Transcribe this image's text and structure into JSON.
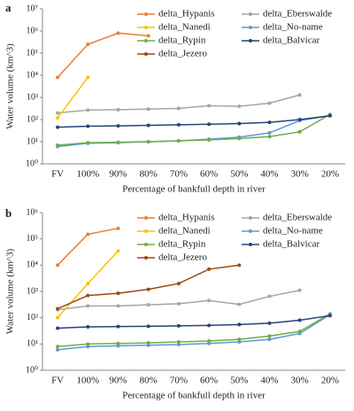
{
  "chart_data": [
    {
      "type": "line",
      "panel": "a",
      "log_y": true,
      "grid": false,
      "y_label": "Water volume (km^3)",
      "x_label": "Percentage of bankfull depth in river",
      "categories": [
        "FV",
        "100%",
        "90%",
        "80%",
        "70%",
        "60%",
        "50%",
        "40%",
        "30%",
        "20%"
      ],
      "ylim": [
        1,
        10000000
      ],
      "yticks": [
        {
          "value": 1,
          "label": "10⁰"
        },
        {
          "value": 10,
          "label": "10¹"
        },
        {
          "value": 100,
          "label": "10²"
        },
        {
          "value": 1000,
          "label": "10³"
        },
        {
          "value": 10000,
          "label": "10⁴"
        },
        {
          "value": 100000,
          "label": "10⁵"
        },
        {
          "value": 1000000,
          "label": "10⁶"
        },
        {
          "value": 10000000,
          "label": "10⁷"
        }
      ],
      "series": [
        {
          "name": "delta_Hypanis",
          "color": "#ed7d31",
          "values": [
            8000,
            250000,
            800000,
            600000,
            null,
            null,
            null,
            null,
            null,
            null
          ]
        },
        {
          "name": "delta_Eberswalde",
          "color": "#a5a5a5",
          "values": [
            200,
            270,
            280,
            300,
            320,
            420,
            400,
            550,
            1300,
            null
          ]
        },
        {
          "name": "delta_Nanedi",
          "color": "#ffc000",
          "values": [
            120,
            8000,
            null,
            null,
            null,
            null,
            null,
            null,
            null,
            null
          ]
        },
        {
          "name": "delta_No-name",
          "color": "#5b9bd5",
          "values": [
            6,
            8.5,
            9,
            10,
            11,
            13,
            16,
            25,
            90,
            150
          ]
        },
        {
          "name": "delta_Rypin",
          "color": "#70ad47",
          "values": [
            7,
            9,
            9.5,
            10,
            11,
            12,
            14,
            17,
            28,
            170
          ]
        },
        {
          "name": "delta_Balvicar",
          "color": "#264478",
          "values": [
            45,
            50,
            52,
            55,
            58,
            62,
            66,
            75,
            100,
            150
          ]
        },
        {
          "name": "delta_Jezero",
          "color": "#9e480e",
          "values": [
            null,
            null,
            null,
            null,
            null,
            null,
            null,
            null,
            null,
            null
          ]
        }
      ]
    },
    {
      "type": "line",
      "panel": "b",
      "log_y": true,
      "grid": false,
      "y_label": "Water volume (km^3)",
      "x_label": "Percentage of bankfull depth in river",
      "categories": [
        "FV",
        "100%",
        "90%",
        "80%",
        "70%",
        "60%",
        "50%",
        "40%",
        "30%",
        "20%"
      ],
      "ylim": [
        1,
        1000000
      ],
      "yticks": [
        {
          "value": 1,
          "label": "10⁰"
        },
        {
          "value": 10,
          "label": "10¹"
        },
        {
          "value": 100,
          "label": "10²"
        },
        {
          "value": 1000,
          "label": "10³"
        },
        {
          "value": 10000,
          "label": "10⁴"
        },
        {
          "value": 100000,
          "label": "10⁵"
        },
        {
          "value": 1000000,
          "label": "10⁶"
        }
      ],
      "series": [
        {
          "name": "delta_Hypanis",
          "color": "#ed7d31",
          "values": [
            10000,
            150000,
            250000,
            null,
            null,
            null,
            null,
            null,
            null,
            null
          ]
        },
        {
          "name": "delta_Eberswalde",
          "color": "#a5a5a5",
          "values": [
            200,
            280,
            280,
            310,
            340,
            450,
            320,
            650,
            1100,
            null
          ]
        },
        {
          "name": "delta_Nanedi",
          "color": "#ffc000",
          "values": [
            100,
            2000,
            35000,
            null,
            null,
            null,
            null,
            null,
            null,
            null
          ]
        },
        {
          "name": "delta_No-name",
          "color": "#5b9bd5",
          "values": [
            6,
            8,
            8.5,
            9,
            9.5,
            10.5,
            12,
            15,
            25,
            130
          ]
        },
        {
          "name": "delta_Rypin",
          "color": "#70ad47",
          "values": [
            8,
            10,
            10.5,
            11,
            12,
            13,
            15,
            20,
            30,
            140
          ]
        },
        {
          "name": "delta_Balvicar",
          "color": "#264478",
          "values": [
            40,
            45,
            46,
            47,
            49,
            51,
            55,
            62,
            80,
            120
          ]
        },
        {
          "name": "delta_Jezero",
          "color": "#9e480e",
          "values": [
            220,
            700,
            850,
            1200,
            2000,
            7000,
            10000,
            null,
            null,
            null
          ]
        }
      ]
    }
  ]
}
